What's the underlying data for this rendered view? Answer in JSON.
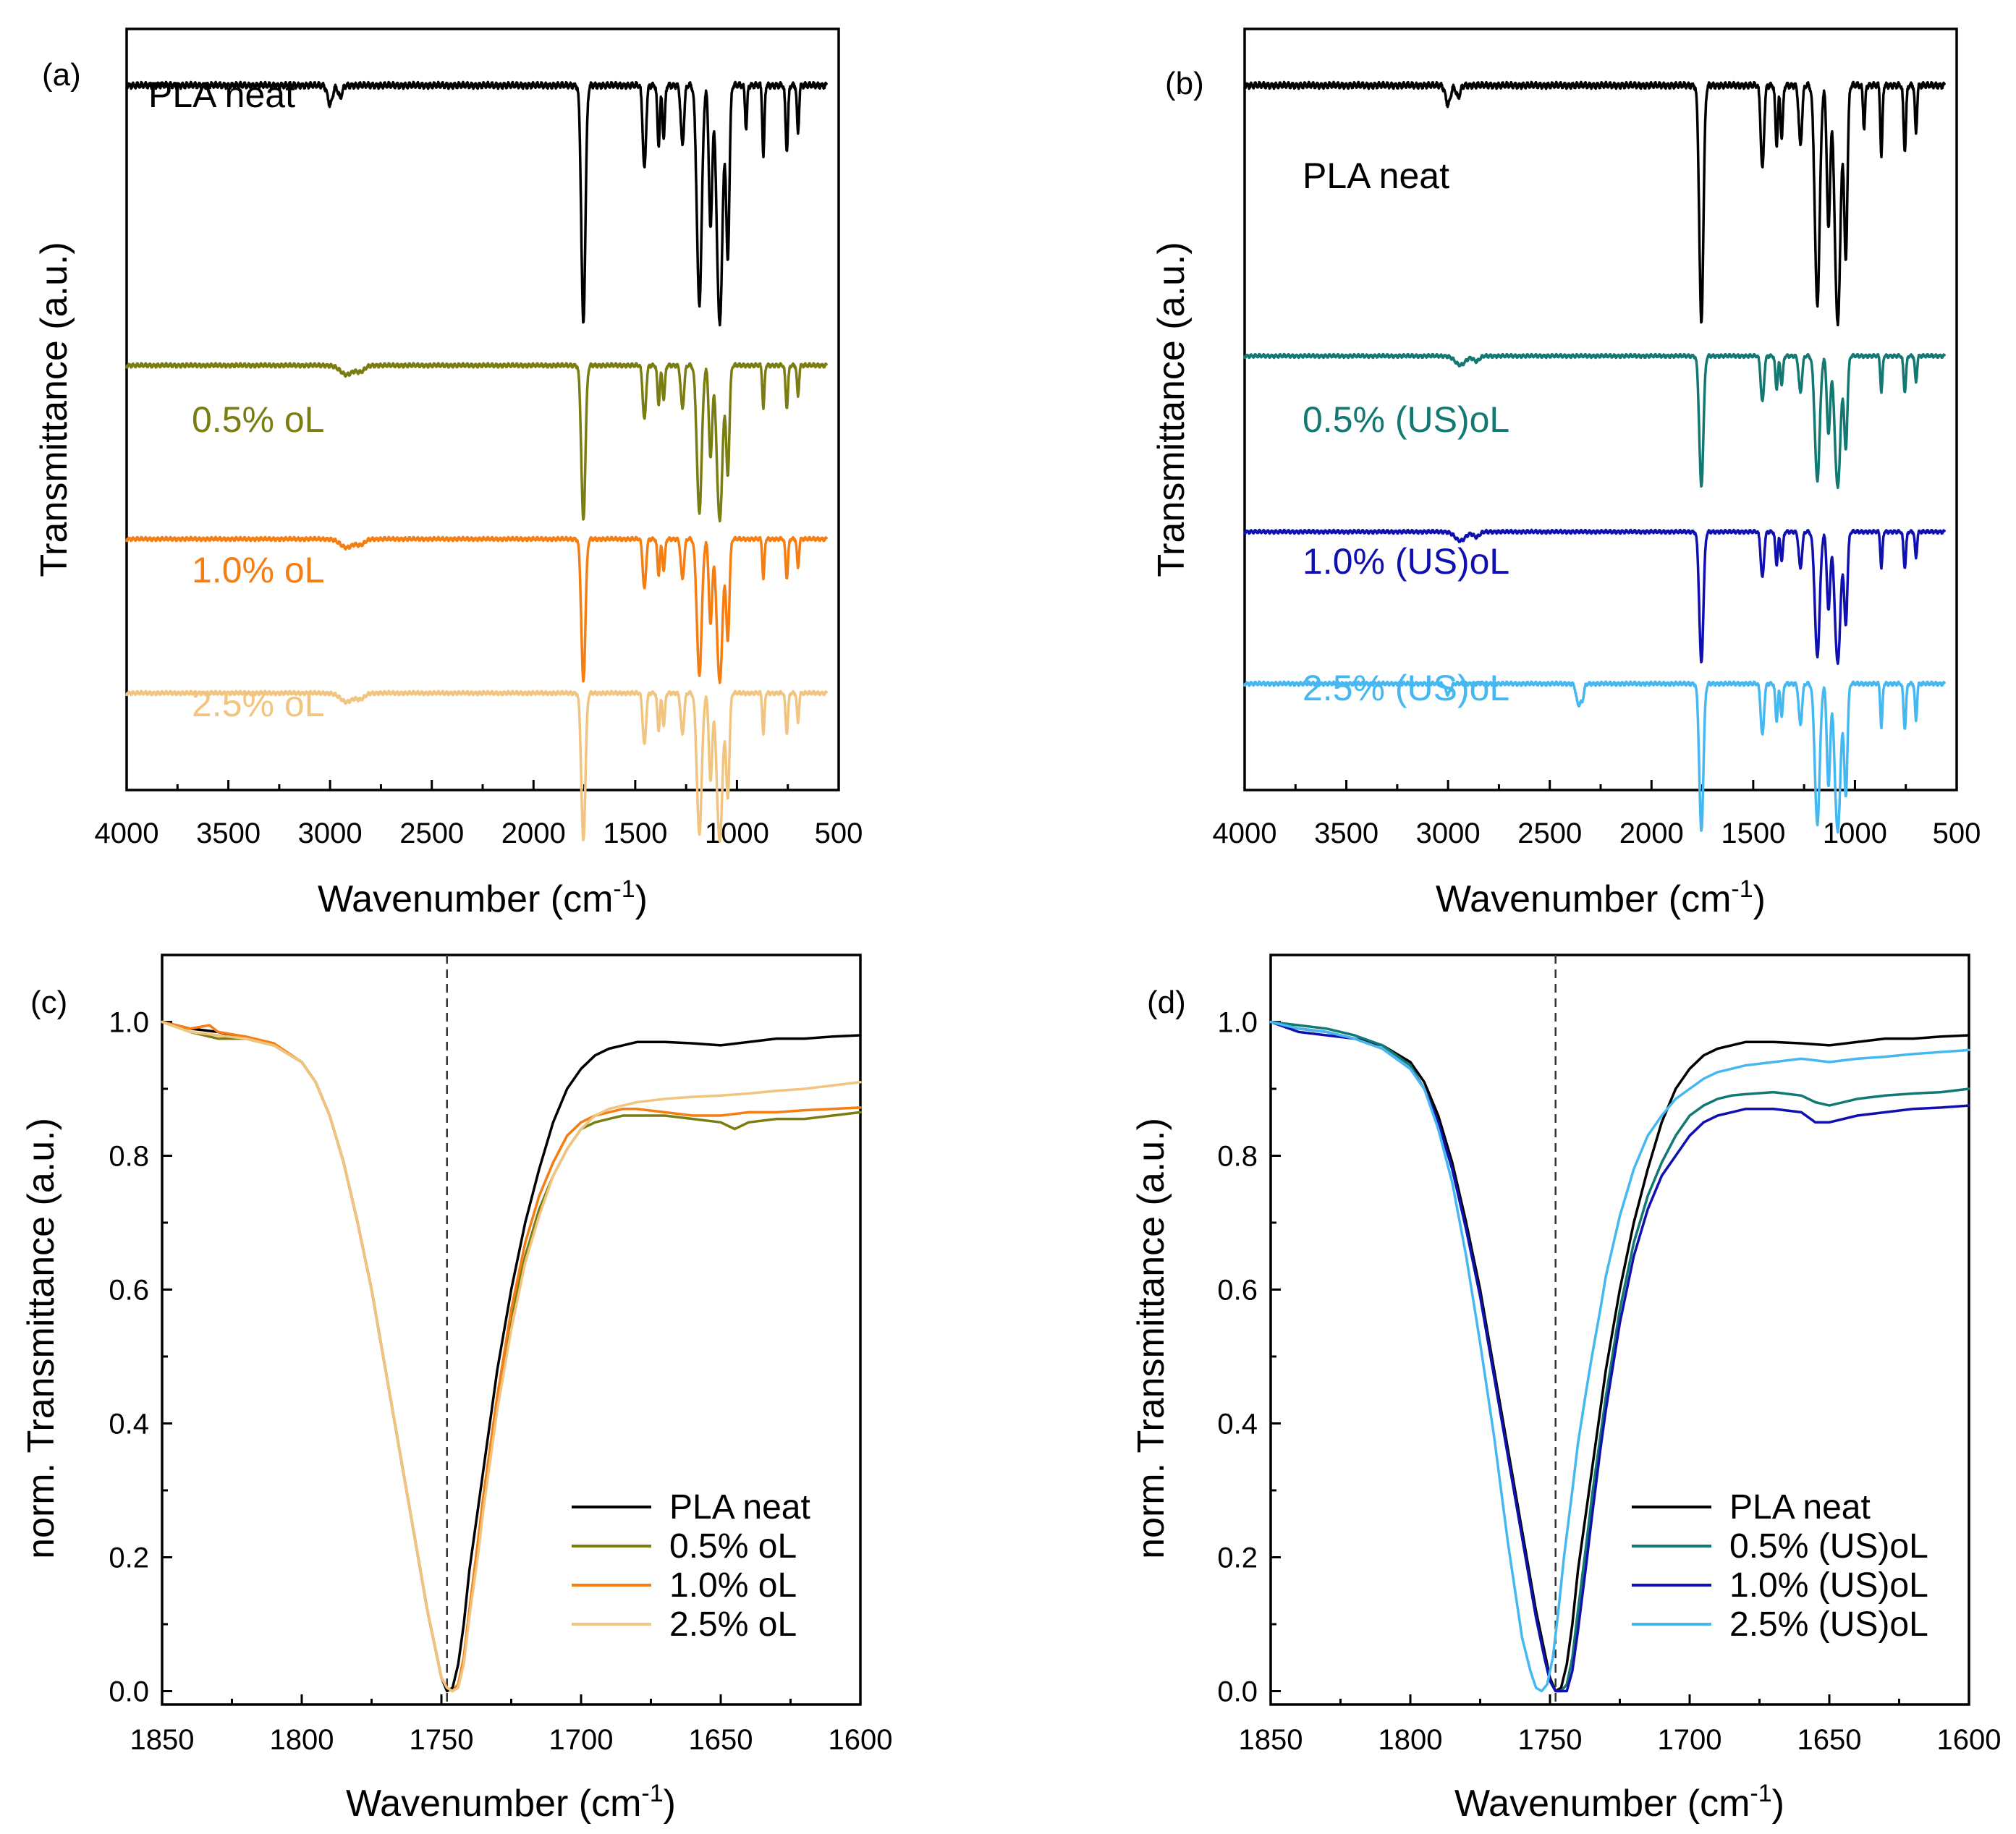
{
  "chart_data": [
    {
      "id": "a",
      "type": "line",
      "panel_label": "(a)",
      "xlabel": "Wavenumber (cm",
      "xlabel_sup": "-1",
      "xlabel_close": ")",
      "ylabel": "Transmittance (a.u.)",
      "xlim": [
        4000,
        500
      ],
      "x_reversed": true,
      "xticks": [
        4000,
        3500,
        3000,
        2500,
        2000,
        1500,
        1000,
        500
      ],
      "y_ticks_shown": false,
      "grid": false,
      "series": [
        {
          "name": "PLA neat",
          "color": "#000000",
          "label_color": "#000000",
          "label_pos": "top-left",
          "spectrum": "neat"
        },
        {
          "name": "0.5% oL",
          "color": "#7a7d12",
          "label_color": "#7a7d12",
          "spectrum": "oL"
        },
        {
          "name": "1.0% oL",
          "color": "#f57e12",
          "label_color": "#f57e12",
          "spectrum": "oL"
        },
        {
          "name": "2.5% oL",
          "color": "#f1c57f",
          "label_color": "#f1c57f",
          "spectrum": "oL"
        }
      ]
    },
    {
      "id": "b",
      "type": "line",
      "panel_label": "(b)",
      "xlabel": "Wavenumber (cm",
      "xlabel_sup": "-1",
      "xlabel_close": ")",
      "ylabel": "Transmittance (a.u.)",
      "xlim": [
        4000,
        500
      ],
      "x_reversed": true,
      "xticks": [
        4000,
        3500,
        3000,
        2500,
        2000,
        1500,
        1000,
        500
      ],
      "y_ticks_shown": false,
      "grid": false,
      "series": [
        {
          "name": "PLA neat",
          "color": "#000000",
          "label_color": "#000000",
          "spectrum": "neat"
        },
        {
          "name": "0.5% (US)oL",
          "color": "#127872",
          "label_color": "#127872",
          "spectrum": "us"
        },
        {
          "name": "1.0% (US)oL",
          "color": "#1010b0",
          "label_color": "#1010b0",
          "spectrum": "us"
        },
        {
          "name": "2.5% (US)oL",
          "color": "#45b8f2",
          "label_color": "#45b8f2",
          "spectrum": "us25"
        }
      ]
    },
    {
      "id": "c",
      "type": "line",
      "panel_label": "(c)",
      "xlabel": "Wavenumber (cm",
      "xlabel_sup": "-1",
      "xlabel_close": ")",
      "ylabel": "norm. Transmittance (a.u.)",
      "xlim": [
        1850,
        1600
      ],
      "x_reversed": true,
      "ylim": [
        -0.02,
        1.1
      ],
      "xticks": [
        1850,
        1800,
        1750,
        1700,
        1650,
        1600
      ],
      "yticks": [
        0.0,
        0.2,
        0.4,
        0.6,
        0.8,
        1.0
      ],
      "ytick_labels": [
        "0.0",
        "0.2",
        "0.4",
        "0.6",
        "0.8",
        "1.0"
      ],
      "reference_line_x": 1748,
      "legend": "bottom-right",
      "grid": false,
      "series": [
        {
          "name": "PLA neat",
          "color": "#000000",
          "x": [
            1850,
            1840,
            1830,
            1820,
            1810,
            1800,
            1795,
            1790,
            1785,
            1780,
            1775,
            1770,
            1765,
            1760,
            1755,
            1752,
            1750,
            1748,
            1746,
            1744,
            1742,
            1740,
            1737,
            1735,
            1732,
            1730,
            1725,
            1720,
            1715,
            1710,
            1705,
            1700,
            1695,
            1690,
            1685,
            1680,
            1670,
            1660,
            1650,
            1640,
            1630,
            1620,
            1610,
            1600
          ],
          "y": [
            1.0,
            0.99,
            0.985,
            0.975,
            0.965,
            0.94,
            0.91,
            0.86,
            0.79,
            0.7,
            0.6,
            0.48,
            0.36,
            0.24,
            0.12,
            0.06,
            0.02,
            0.0,
            0.005,
            0.04,
            0.1,
            0.18,
            0.27,
            0.33,
            0.42,
            0.48,
            0.6,
            0.7,
            0.78,
            0.85,
            0.9,
            0.93,
            0.95,
            0.96,
            0.965,
            0.97,
            0.97,
            0.968,
            0.965,
            0.97,
            0.975,
            0.975,
            0.978,
            0.98
          ]
        },
        {
          "name": "0.5% oL",
          "color": "#7a7d12",
          "x": [
            1850,
            1840,
            1830,
            1820,
            1810,
            1800,
            1795,
            1790,
            1785,
            1780,
            1775,
            1770,
            1765,
            1760,
            1755,
            1752,
            1750,
            1748,
            1746,
            1744,
            1742,
            1740,
            1737,
            1735,
            1732,
            1730,
            1725,
            1720,
            1715,
            1710,
            1705,
            1700,
            1695,
            1690,
            1685,
            1680,
            1670,
            1660,
            1650,
            1645,
            1640,
            1630,
            1620,
            1610,
            1600
          ],
          "y": [
            1.0,
            0.985,
            0.975,
            0.975,
            0.965,
            0.94,
            0.91,
            0.86,
            0.79,
            0.7,
            0.6,
            0.48,
            0.36,
            0.24,
            0.12,
            0.06,
            0.02,
            0.005,
            0.0,
            0.01,
            0.05,
            0.12,
            0.22,
            0.29,
            0.38,
            0.44,
            0.56,
            0.65,
            0.72,
            0.77,
            0.81,
            0.84,
            0.85,
            0.855,
            0.86,
            0.86,
            0.86,
            0.855,
            0.85,
            0.84,
            0.85,
            0.855,
            0.855,
            0.86,
            0.865
          ]
        },
        {
          "name": "1.0% oL",
          "color": "#f57e12",
          "x": [
            1850,
            1840,
            1833,
            1830,
            1820,
            1810,
            1800,
            1795,
            1790,
            1785,
            1780,
            1775,
            1770,
            1765,
            1760,
            1755,
            1752,
            1750,
            1748,
            1746,
            1744,
            1742,
            1740,
            1737,
            1735,
            1732,
            1730,
            1725,
            1720,
            1715,
            1710,
            1705,
            1700,
            1695,
            1690,
            1685,
            1680,
            1670,
            1660,
            1650,
            1640,
            1630,
            1620,
            1610,
            1600
          ],
          "y": [
            1.0,
            0.99,
            0.995,
            0.985,
            0.978,
            0.968,
            0.94,
            0.91,
            0.86,
            0.79,
            0.7,
            0.6,
            0.48,
            0.36,
            0.24,
            0.12,
            0.06,
            0.02,
            0.005,
            0.0,
            0.01,
            0.05,
            0.12,
            0.22,
            0.29,
            0.38,
            0.44,
            0.57,
            0.67,
            0.74,
            0.79,
            0.83,
            0.85,
            0.86,
            0.865,
            0.87,
            0.87,
            0.865,
            0.86,
            0.86,
            0.865,
            0.865,
            0.868,
            0.87,
            0.872
          ]
        },
        {
          "name": "2.5% oL",
          "color": "#f1c57f",
          "x": [
            1850,
            1840,
            1830,
            1820,
            1810,
            1800,
            1795,
            1790,
            1785,
            1780,
            1775,
            1770,
            1765,
            1760,
            1755,
            1752,
            1750,
            1748,
            1746,
            1744,
            1742,
            1740,
            1737,
            1735,
            1732,
            1730,
            1725,
            1720,
            1715,
            1710,
            1705,
            1700,
            1695,
            1690,
            1685,
            1680,
            1670,
            1660,
            1650,
            1640,
            1630,
            1620,
            1610,
            1600
          ],
          "y": [
            1.0,
            0.985,
            0.98,
            0.975,
            0.965,
            0.94,
            0.91,
            0.86,
            0.79,
            0.7,
            0.6,
            0.48,
            0.36,
            0.24,
            0.12,
            0.06,
            0.02,
            0.005,
            0.0,
            0.005,
            0.04,
            0.11,
            0.2,
            0.27,
            0.36,
            0.42,
            0.54,
            0.64,
            0.71,
            0.77,
            0.81,
            0.84,
            0.86,
            0.87,
            0.875,
            0.88,
            0.885,
            0.888,
            0.89,
            0.893,
            0.897,
            0.9,
            0.905,
            0.91
          ]
        }
      ]
    },
    {
      "id": "d",
      "type": "line",
      "panel_label": "(d)",
      "xlabel": "Wavenumber (cm",
      "xlabel_sup": "-1",
      "xlabel_close": ")",
      "ylabel": "norm. Transmittance (a.u.)",
      "xlim": [
        1850,
        1600
      ],
      "x_reversed": true,
      "ylim": [
        -0.02,
        1.1
      ],
      "xticks": [
        1850,
        1800,
        1750,
        1700,
        1650,
        1600
      ],
      "yticks": [
        0.0,
        0.2,
        0.4,
        0.6,
        0.8,
        1.0
      ],
      "ytick_labels": [
        "0.0",
        "0.2",
        "0.4",
        "0.6",
        "0.8",
        "1.0"
      ],
      "reference_line_x": 1748,
      "legend": "bottom-right",
      "grid": false,
      "series": [
        {
          "name": "PLA neat",
          "color": "#000000",
          "x": [
            1850,
            1840,
            1830,
            1820,
            1810,
            1800,
            1795,
            1790,
            1785,
            1780,
            1775,
            1770,
            1765,
            1760,
            1755,
            1752,
            1750,
            1748,
            1746,
            1744,
            1742,
            1740,
            1737,
            1735,
            1732,
            1730,
            1725,
            1720,
            1715,
            1710,
            1705,
            1700,
            1695,
            1690,
            1685,
            1680,
            1670,
            1660,
            1650,
            1640,
            1630,
            1620,
            1610,
            1600
          ],
          "y": [
            1.0,
            0.99,
            0.985,
            0.975,
            0.965,
            0.94,
            0.91,
            0.86,
            0.79,
            0.7,
            0.6,
            0.48,
            0.36,
            0.24,
            0.12,
            0.06,
            0.02,
            0.0,
            0.005,
            0.04,
            0.1,
            0.18,
            0.27,
            0.33,
            0.42,
            0.48,
            0.6,
            0.7,
            0.78,
            0.85,
            0.9,
            0.93,
            0.95,
            0.96,
            0.965,
            0.97,
            0.97,
            0.968,
            0.965,
            0.97,
            0.975,
            0.975,
            0.978,
            0.98
          ]
        },
        {
          "name": "0.5% (US)oL",
          "color": "#127872",
          "x": [
            1850,
            1840,
            1830,
            1820,
            1810,
            1800,
            1795,
            1790,
            1785,
            1780,
            1775,
            1770,
            1765,
            1760,
            1755,
            1752,
            1750,
            1748,
            1746,
            1744,
            1742,
            1740,
            1737,
            1735,
            1732,
            1730,
            1725,
            1720,
            1715,
            1710,
            1705,
            1700,
            1695,
            1690,
            1685,
            1680,
            1670,
            1660,
            1655,
            1650,
            1640,
            1630,
            1620,
            1610,
            1600
          ],
          "y": [
            1.0,
            0.995,
            0.99,
            0.98,
            0.965,
            0.935,
            0.9,
            0.85,
            0.78,
            0.69,
            0.59,
            0.47,
            0.35,
            0.23,
            0.11,
            0.05,
            0.015,
            0.0,
            0.0,
            0.01,
            0.05,
            0.12,
            0.22,
            0.29,
            0.38,
            0.44,
            0.57,
            0.67,
            0.74,
            0.79,
            0.83,
            0.86,
            0.875,
            0.885,
            0.89,
            0.892,
            0.895,
            0.89,
            0.88,
            0.875,
            0.885,
            0.89,
            0.893,
            0.895,
            0.9
          ]
        },
        {
          "name": "1.0% (US)oL",
          "color": "#1010b0",
          "x": [
            1850,
            1840,
            1830,
            1820,
            1810,
            1800,
            1795,
            1790,
            1785,
            1780,
            1775,
            1770,
            1765,
            1760,
            1755,
            1752,
            1750,
            1748,
            1746,
            1744,
            1742,
            1740,
            1737,
            1735,
            1732,
            1730,
            1725,
            1720,
            1715,
            1710,
            1705,
            1700,
            1695,
            1690,
            1685,
            1680,
            1670,
            1660,
            1655,
            1650,
            1640,
            1630,
            1620,
            1610,
            1600
          ],
          "y": [
            1.0,
            0.985,
            0.98,
            0.975,
            0.96,
            0.93,
            0.9,
            0.85,
            0.78,
            0.69,
            0.59,
            0.47,
            0.35,
            0.23,
            0.11,
            0.05,
            0.015,
            0.0,
            0.0,
            0.0,
            0.03,
            0.09,
            0.19,
            0.26,
            0.36,
            0.42,
            0.55,
            0.65,
            0.72,
            0.77,
            0.8,
            0.83,
            0.85,
            0.86,
            0.865,
            0.87,
            0.87,
            0.865,
            0.85,
            0.85,
            0.86,
            0.865,
            0.87,
            0.872,
            0.875
          ]
        },
        {
          "name": "2.5% (US)oL",
          "color": "#45b8f2",
          "x": [
            1850,
            1840,
            1830,
            1820,
            1810,
            1800,
            1795,
            1790,
            1785,
            1780,
            1775,
            1770,
            1765,
            1760,
            1757,
            1755,
            1753,
            1751,
            1749,
            1747,
            1745,
            1742,
            1740,
            1737,
            1735,
            1732,
            1730,
            1725,
            1720,
            1715,
            1710,
            1705,
            1700,
            1695,
            1690,
            1685,
            1680,
            1670,
            1660,
            1650,
            1640,
            1630,
            1620,
            1610,
            1600
          ],
          "y": [
            1.0,
            0.99,
            0.985,
            0.975,
            0.96,
            0.93,
            0.9,
            0.84,
            0.76,
            0.65,
            0.52,
            0.38,
            0.22,
            0.08,
            0.03,
            0.005,
            0.0,
            0.01,
            0.05,
            0.12,
            0.2,
            0.3,
            0.37,
            0.45,
            0.5,
            0.57,
            0.62,
            0.71,
            0.78,
            0.83,
            0.86,
            0.885,
            0.9,
            0.915,
            0.925,
            0.93,
            0.935,
            0.94,
            0.945,
            0.94,
            0.945,
            0.948,
            0.952,
            0.955,
            0.958
          ]
        }
      ]
    }
  ]
}
